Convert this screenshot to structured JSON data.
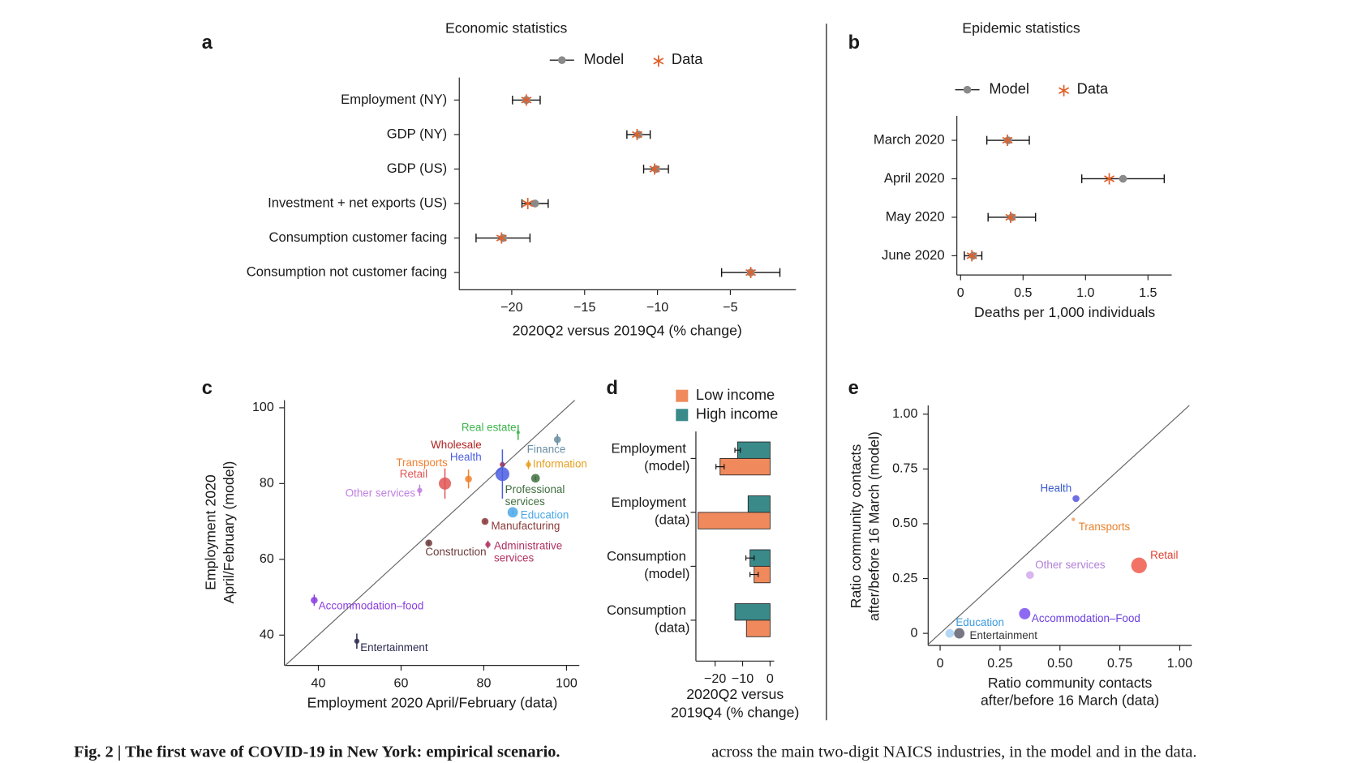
{
  "chart_data": [
    {
      "type": "dot",
      "panel": "a",
      "title": "Economic statistics",
      "categories": [
        "Employment (NY)",
        "GDP (NY)",
        "GDP (US)",
        "Investment + net exports (US)",
        "Consumption customer facing",
        "Consumption not customer facing"
      ],
      "series": [
        {
          "name": "Model",
          "color": "#8a8a8a",
          "values": [
            -19.0,
            -11.3,
            -10.1,
            -18.4,
            -20.6,
            -3.6
          ],
          "errors": [
            0.95,
            0.8,
            0.85,
            0.9,
            1.85,
            2.0
          ]
        },
        {
          "name": "Data",
          "color": "#e0602a",
          "values": [
            -19.0,
            -11.4,
            -10.2,
            -18.9,
            -20.7,
            -3.6
          ]
        }
      ],
      "xlabel": "2020Q2 versus 2019Q4 (% change)",
      "xlim": [
        -23.6,
        -0.5
      ],
      "xticks": [
        {
          "value": -20,
          "label": "−20"
        },
        {
          "value": -15,
          "label": "−15"
        },
        {
          "value": -10,
          "label": "−10"
        },
        {
          "value": -5,
          "label": "−5"
        }
      ]
    },
    {
      "type": "dot",
      "panel": "b",
      "title": "Epidemic statistics",
      "categories": [
        "March 2020",
        "April 2020",
        "May 2020",
        "June 2020"
      ],
      "series": [
        {
          "name": "Model",
          "color": "#8a8a8a",
          "values": [
            0.38,
            1.3,
            0.41,
            0.1
          ],
          "errors": [
            0.17,
            0.33,
            0.19,
            0.07
          ]
        },
        {
          "name": "Data",
          "color": "#e0602a",
          "values": [
            0.375,
            1.19,
            0.4,
            0.09
          ]
        }
      ],
      "xlabel": "Deaths per 1,000 individuals",
      "xlim": [
        -0.03,
        1.69
      ],
      "xticks": [
        0,
        0.5,
        {
          "value": 1,
          "label": "1.0"
        },
        1.5
      ]
    },
    {
      "type": "scatter",
      "panel": "c",
      "labels": [
        "Real estate",
        "Finance",
        "Information",
        "Wholesale",
        "Health",
        "Professional services",
        "Transports",
        "Retail",
        "Other services",
        "Education",
        "Manufacturing",
        "Administrative services",
        "Construction",
        "Accommodation–food",
        "Entertainment"
      ],
      "x": [
        88.3,
        97.8,
        90.8,
        84.5,
        84.5,
        92.5,
        76.3,
        70.6,
        64.5,
        87.0,
        80.3,
        81.0,
        66.7,
        39.0,
        49.3
      ],
      "y": [
        93.5,
        91.6,
        85.0,
        85.0,
        82.5,
        81.4,
        81.2,
        80.0,
        78.2,
        72.4,
        70.0,
        63.9,
        64.3,
        49.2,
        38.4
      ],
      "errors": [
        2.0,
        1.5,
        1.2,
        1.0,
        6.5,
        0.5,
        2.5,
        4.0,
        1.5,
        0.5,
        0.5,
        1.0,
        0.5,
        1.5,
        2.0
      ],
      "sizes": [
        2,
        4,
        3,
        3,
        8,
        5,
        4,
        7,
        3,
        6,
        4,
        3,
        4,
        4,
        3
      ],
      "colors": [
        "#3cb44b",
        "#6a8fa3",
        "#e6a020",
        "#b22222",
        "#4b5de0",
        "#3f6e3f",
        "#f08030",
        "#e05555",
        "#c080e0",
        "#4aa8e8",
        "#8b3a3a",
        "#b03060",
        "#6b3a3a",
        "#8a3ee0",
        "#2a2a50"
      ],
      "xlabel": "Employment 2020 April/February (data)",
      "ylabel": [
        "Employment 2020",
        "April/February (model)"
      ],
      "xlim": [
        31.8,
        103.1
      ],
      "ylim": [
        32,
        102
      ],
      "xticks": [
        40,
        60,
        80,
        100
      ],
      "yticks": [
        40,
        60,
        80,
        100
      ]
    },
    {
      "type": "bar",
      "panel": "d",
      "categories": [
        "Employment (model)",
        "Employment (data)",
        "Consumption (model)",
        "Consumption (data)"
      ],
      "series": [
        {
          "name": "Low income",
          "color": "#f08a5d",
          "values": [
            -18.2,
            -26.2,
            -5.8,
            -8.6
          ],
          "errors": [
            1.5,
            null,
            1.5,
            null
          ]
        },
        {
          "name": "High income",
          "color": "#3a8a8a",
          "values": [
            -11.8,
            -8.0,
            -7.3,
            -12.8
          ],
          "errors": [
            1.0,
            null,
            1.5,
            null
          ]
        }
      ],
      "xlabel": [
        "2020Q2 versus",
        "2019Q4 (% change)"
      ],
      "xlim": [
        -27,
        1.5
      ],
      "xticks": [
        {
          "value": -20,
          "label": "−20"
        },
        {
          "value": -10,
          "label": "−10"
        },
        0
      ]
    },
    {
      "type": "scatter",
      "panel": "e",
      "labels": [
        "Health",
        "Transports",
        "Retail",
        "Other services",
        "Accommodation–Food",
        "Education",
        "Entertainment"
      ],
      "x": [
        0.567,
        0.556,
        0.83,
        0.375,
        0.353,
        0.04,
        0.08
      ],
      "y": [
        0.615,
        0.52,
        0.31,
        0.266,
        0.09,
        0.0,
        0.0
      ],
      "sizes": [
        4,
        2,
        9,
        4.5,
        6.5,
        5,
        6
      ],
      "colors": [
        "#5555e0",
        "#f0a060",
        "#f05a4a",
        "#d4a8ec",
        "#7a50f0",
        "#a8d0f4",
        "#606070"
      ],
      "label_colors": [
        "#3a5bd0",
        "#e8802a",
        "#e04030",
        "#b080d8",
        "#6a3ee0",
        "#3a9ae0",
        "#333333"
      ],
      "xlabel": [
        "Ratio community contacts",
        "after/before 16 March (data)"
      ],
      "ylabel": [
        "Ratio community contacts",
        "after/before 16 March (model)"
      ],
      "xlim": [
        -0.05,
        1.05
      ],
      "ylim": [
        -0.055,
        1.04
      ],
      "xticks": [
        0,
        0.25,
        {
          "value": 0.5,
          "label": "0.50"
        },
        0.75,
        {
          "value": 1,
          "label": "1.00"
        }
      ],
      "yticks": [
        0,
        0.25,
        {
          "value": 0.5,
          "label": "0.50"
        },
        0.75,
        {
          "value": 1,
          "label": "1.00"
        }
      ]
    }
  ],
  "caption": {
    "bold": "Fig. 2 | The first wave of COVID-19 in New York: empirical scenario.",
    "text": "across the main two-digit NAICS industries, in the model and in the data."
  }
}
